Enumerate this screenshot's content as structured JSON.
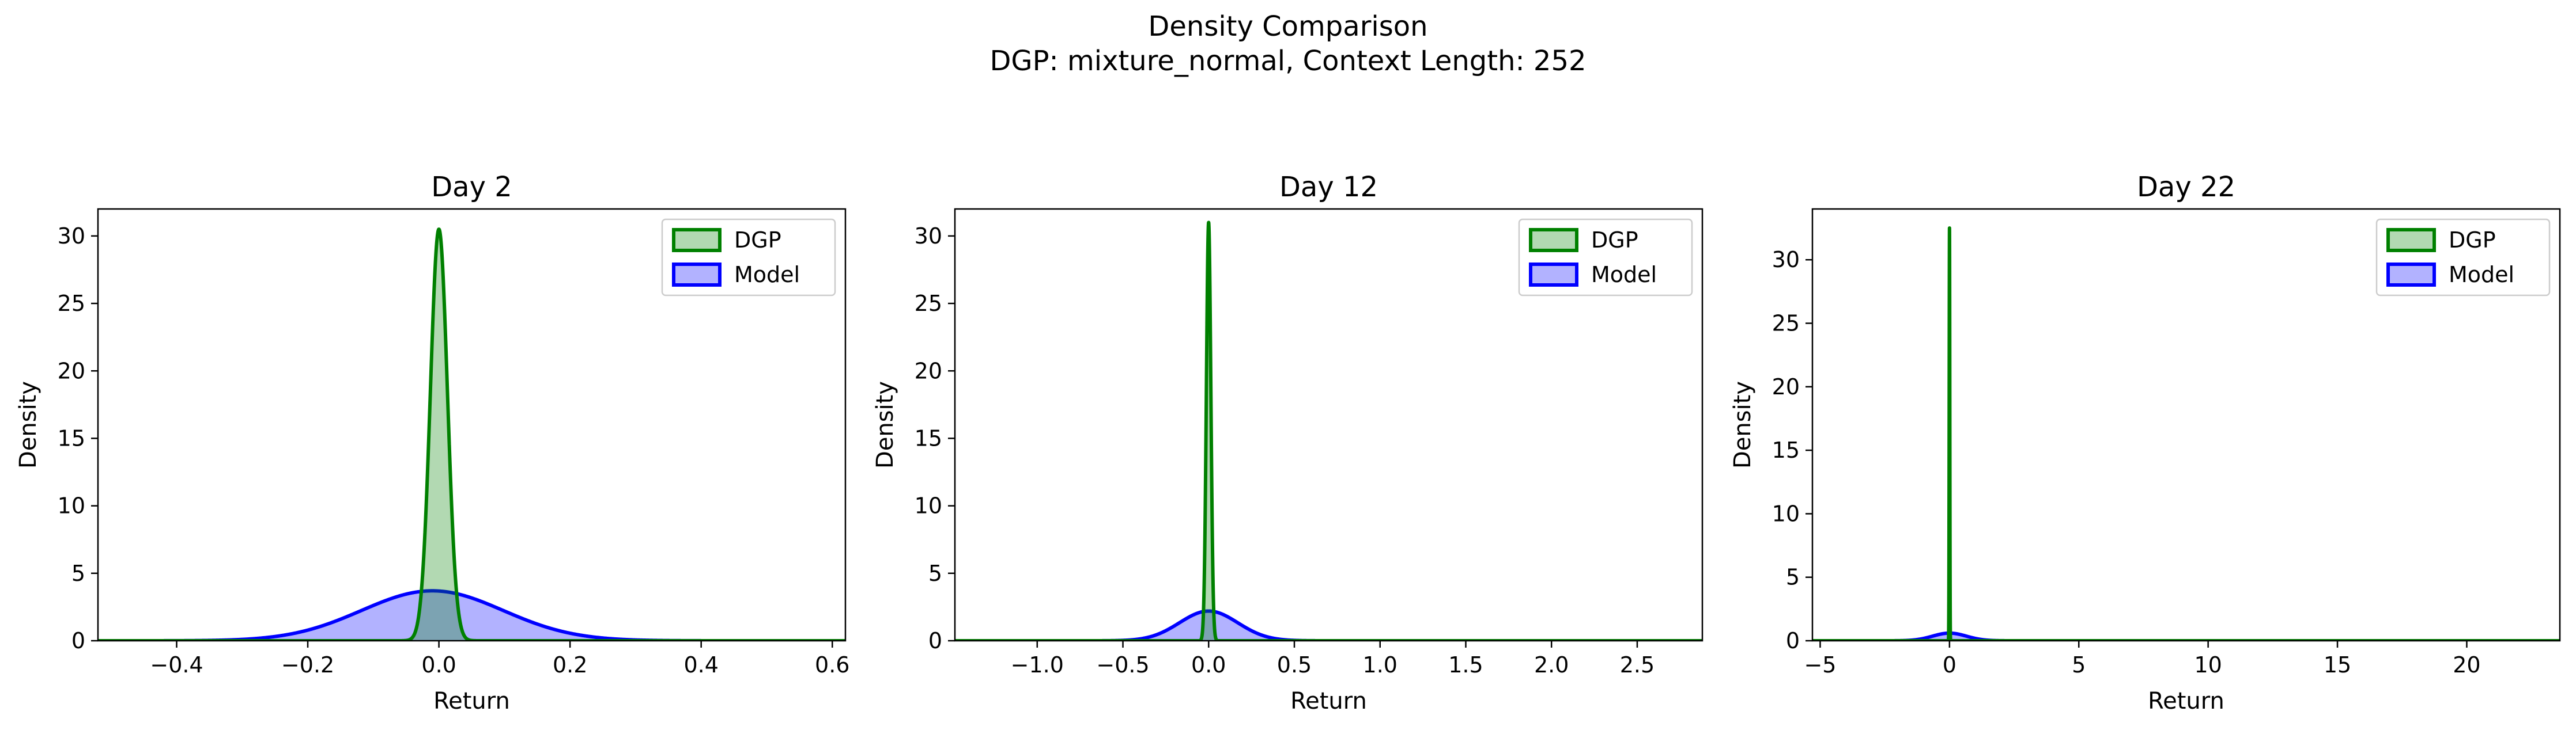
{
  "figure": {
    "title_line1": "Density Comparison",
    "title_line2": "DGP: mixture_normal, Context Length: 252"
  },
  "colors": {
    "dgp": "#008000",
    "model": "#0000ff",
    "overlap": "#3c7f72"
  },
  "chart_data": [
    {
      "type": "area",
      "title": "Day 2",
      "xlabel": "Return",
      "ylabel": "Density",
      "xlim": [
        -0.52,
        0.62
      ],
      "ylim": [
        0,
        32
      ],
      "xticks": [
        -0.4,
        -0.2,
        0.0,
        0.2,
        0.4,
        0.6
      ],
      "xtick_labels": [
        "−0.4",
        "−0.2",
        "0.0",
        "0.2",
        "0.4",
        "0.6"
      ],
      "yticks": [
        0,
        5,
        10,
        15,
        20,
        25,
        30
      ],
      "ytick_labels": [
        "0",
        "5",
        "10",
        "15",
        "20",
        "25",
        "30"
      ],
      "legend": "top-right",
      "series": [
        {
          "name": "DGP",
          "kind": "normal",
          "mean": 0.0,
          "peak": 30.5,
          "sd": 0.013
        },
        {
          "name": "Model",
          "kind": "normal",
          "mean": -0.01,
          "peak": 3.7,
          "sd": 0.108
        }
      ]
    },
    {
      "type": "area",
      "title": "Day 12",
      "xlabel": "Return",
      "ylabel": "Density",
      "xlim": [
        -1.48,
        2.88
      ],
      "ylim": [
        0,
        32
      ],
      "xticks": [
        -1.0,
        -0.5,
        0.0,
        0.5,
        1.0,
        1.5,
        2.0,
        2.5
      ],
      "xtick_labels": [
        "−1.0",
        "−0.5",
        "0.0",
        "0.5",
        "1.0",
        "1.5",
        "2.0",
        "2.5"
      ],
      "yticks": [
        0,
        5,
        10,
        15,
        20,
        25,
        30
      ],
      "ytick_labels": [
        "0",
        "5",
        "10",
        "15",
        "20",
        "25",
        "30"
      ],
      "legend": "top-right",
      "series": [
        {
          "name": "DGP",
          "kind": "normal",
          "mean": 0.0,
          "peak": 31.0,
          "sd": 0.013
        },
        {
          "name": "Model",
          "kind": "normal",
          "mean": 0.0,
          "peak": 2.2,
          "sd": 0.17
        }
      ]
    },
    {
      "type": "area",
      "title": "Day 22",
      "xlabel": "Return",
      "ylabel": "Density",
      "xlim": [
        -5.3,
        23.6
      ],
      "ylim": [
        0,
        34
      ],
      "xticks": [
        -5,
        0,
        5,
        10,
        15,
        20
      ],
      "xtick_labels": [
        "−5",
        "0",
        "5",
        "10",
        "15",
        "20"
      ],
      "yticks": [
        0,
        5,
        10,
        15,
        20,
        25,
        30
      ],
      "ytick_labels": [
        "0",
        "5",
        "10",
        "15",
        "20",
        "25",
        "30"
      ],
      "legend": "top-right",
      "series": [
        {
          "name": "DGP",
          "kind": "normal",
          "mean": 0.0,
          "peak": 32.5,
          "sd": 0.012
        },
        {
          "name": "Model",
          "kind": "normal",
          "mean": 0.0,
          "peak": 0.6,
          "sd": 0.65
        }
      ]
    }
  ]
}
